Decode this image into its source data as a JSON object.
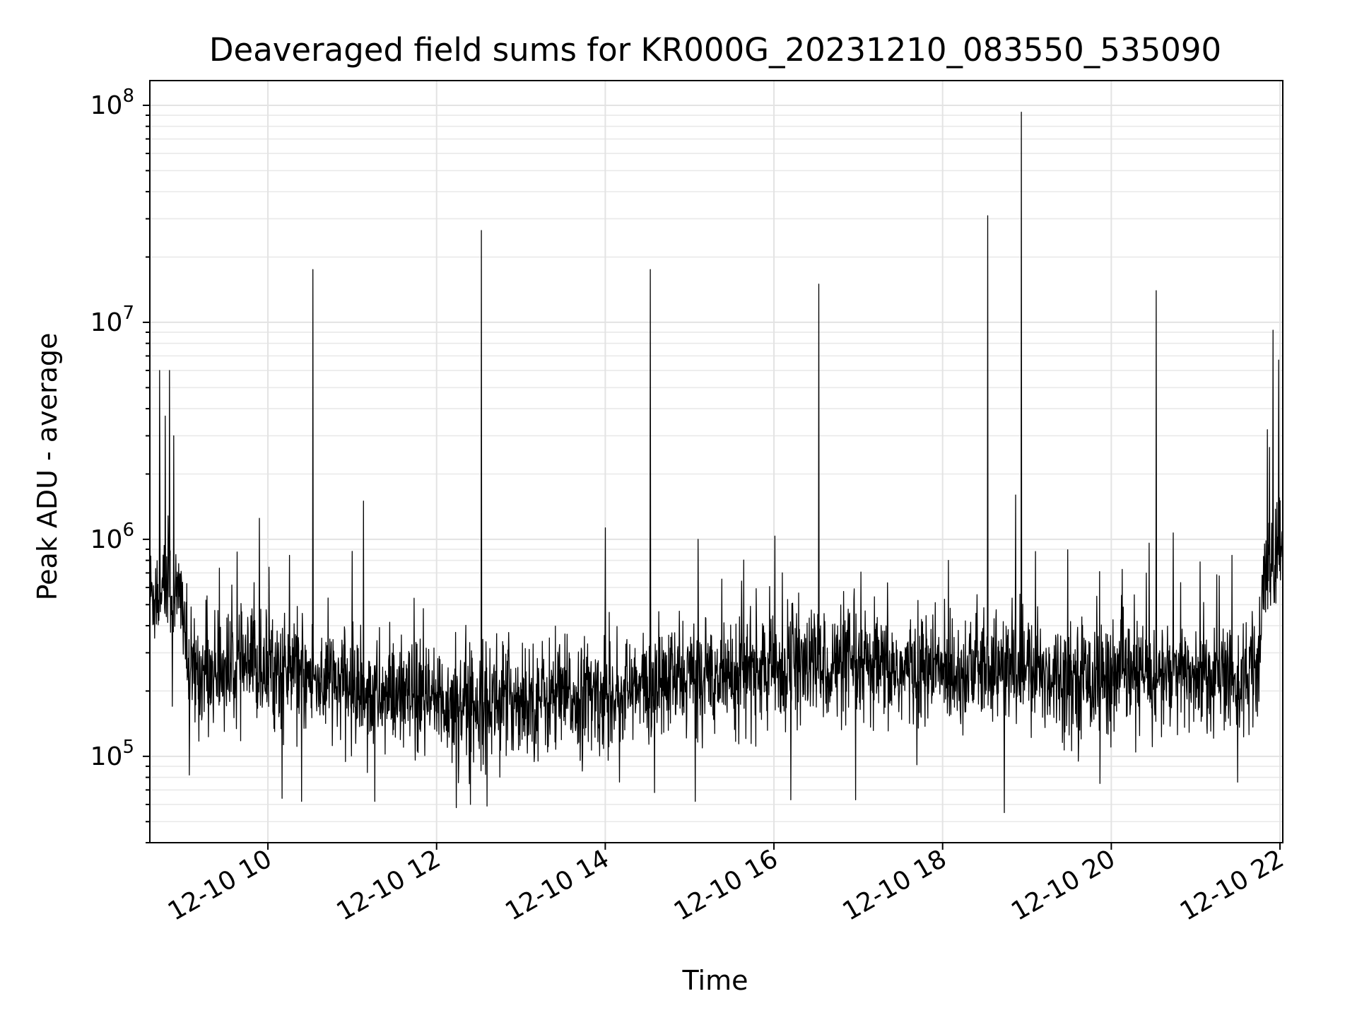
{
  "chart_data": {
    "type": "line",
    "title": "Deaveraged field sums for KR000G_20231210_083550_535090",
    "xlabel": "Time",
    "ylabel": "Peak ADU - average",
    "yscale": "log",
    "ylim": [
      40000,
      130000000
    ],
    "xlim": [
      "2023-12-10 08:36",
      "2023-12-10 22:02"
    ],
    "grid": true,
    "line_color": "#000000",
    "x_ticks": [
      {
        "value": "2023-12-10 10:00",
        "label": "12-10 10"
      },
      {
        "value": "2023-12-10 12:00",
        "label": "12-10 12"
      },
      {
        "value": "2023-12-10 14:00",
        "label": "12-10 14"
      },
      {
        "value": "2023-12-10 16:00",
        "label": "12-10 16"
      },
      {
        "value": "2023-12-10 18:00",
        "label": "12-10 18"
      },
      {
        "value": "2023-12-10 20:00",
        "label": "12-10 20"
      },
      {
        "value": "2023-12-10 22:00",
        "label": "12-10 22"
      }
    ],
    "y_ticks": [
      {
        "value": 100000,
        "base": "10",
        "exp": "5"
      },
      {
        "value": 1000000,
        "base": "10",
        "exp": "6"
      },
      {
        "value": 10000000,
        "base": "10",
        "exp": "7"
      },
      {
        "value": 100000000,
        "base": "10",
        "exp": "8"
      }
    ],
    "series": [
      {
        "baseline": [
          [
            "2023-12-10 08:36",
            550000
          ],
          [
            "2023-12-10 08:48",
            600000
          ],
          [
            "2023-12-10 09:00",
            500000
          ],
          [
            "2023-12-10 09:03",
            240000
          ],
          [
            "2023-12-10 09:30",
            250000
          ],
          [
            "2023-12-10 10:00",
            260000
          ],
          [
            "2023-12-10 10:30",
            230000
          ],
          [
            "2023-12-10 11:00",
            205000
          ],
          [
            "2023-12-10 11:30",
            185000
          ],
          [
            "2023-12-10 12:00",
            175000
          ],
          [
            "2023-12-10 12:30",
            180000
          ],
          [
            "2023-12-10 13:00",
            185000
          ],
          [
            "2023-12-10 13:30",
            185000
          ],
          [
            "2023-12-10 14:00",
            190000
          ],
          [
            "2023-12-10 14:30",
            205000
          ],
          [
            "2023-12-10 15:00",
            235000
          ],
          [
            "2023-12-10 15:30",
            245000
          ],
          [
            "2023-12-10 16:00",
            250000
          ],
          [
            "2023-12-10 16:30",
            265000
          ],
          [
            "2023-12-10 17:00",
            250000
          ],
          [
            "2023-12-10 17:30",
            245000
          ],
          [
            "2023-12-10 18:00",
            250000
          ],
          [
            "2023-12-10 18:30",
            255000
          ],
          [
            "2023-12-10 19:00",
            245000
          ],
          [
            "2023-12-10 19:30",
            235000
          ],
          [
            "2023-12-10 20:00",
            230000
          ],
          [
            "2023-12-10 20:30",
            235000
          ],
          [
            "2023-12-10 21:00",
            235000
          ],
          [
            "2023-12-10 21:30",
            230000
          ],
          [
            "2023-12-10 21:45",
            225000
          ],
          [
            "2023-12-10 21:48",
            650000
          ],
          [
            "2023-12-10 22:02",
            950000
          ]
        ],
        "spikes": [
          [
            "2023-12-10 08:43",
            6000000
          ],
          [
            "2023-12-10 08:47",
            3700000
          ],
          [
            "2023-12-10 08:50",
            6000000
          ],
          [
            "2023-12-10 08:53",
            3000000
          ],
          [
            "2023-12-10 09:54",
            1250000
          ],
          [
            "2023-12-10 10:32",
            17500000
          ],
          [
            "2023-12-10 11:00",
            880000
          ],
          [
            "2023-12-10 11:08",
            1500000
          ],
          [
            "2023-12-10 12:32",
            26500000
          ],
          [
            "2023-12-10 14:00",
            1130000
          ],
          [
            "2023-12-10 14:32",
            17500000
          ],
          [
            "2023-12-10 15:06",
            1000000
          ],
          [
            "2023-12-10 16:32",
            15000000
          ],
          [
            "2023-12-10 18:04",
            800000
          ],
          [
            "2023-12-10 18:32",
            31000000
          ],
          [
            "2023-12-10 18:52",
            1600000
          ],
          [
            "2023-12-10 18:56",
            93000000
          ],
          [
            "2023-12-10 20:27",
            960000
          ],
          [
            "2023-12-10 20:32",
            14000000
          ],
          [
            "2023-12-10 21:51",
            3200000
          ],
          [
            "2023-12-10 21:55",
            9200000
          ],
          [
            "2023-12-10 21:59",
            6700000
          ]
        ],
        "dips": [
          [
            "2023-12-10 08:52",
            170000
          ],
          [
            "2023-12-10 09:04",
            82000
          ],
          [
            "2023-12-10 10:10",
            64000
          ],
          [
            "2023-12-10 10:24",
            62000
          ],
          [
            "2023-12-10 11:16",
            62000
          ],
          [
            "2023-12-10 12:14",
            58000
          ],
          [
            "2023-12-10 12:24",
            60000
          ],
          [
            "2023-12-10 12:36",
            59000
          ],
          [
            "2023-12-10 15:04",
            62000
          ],
          [
            "2023-12-10 16:12",
            63000
          ],
          [
            "2023-12-10 16:58",
            63000
          ],
          [
            "2023-12-10 18:44",
            55000
          ],
          [
            "2023-12-10 19:52",
            75000
          ],
          [
            "2023-12-10 21:30",
            76000
          ]
        ]
      }
    ]
  }
}
